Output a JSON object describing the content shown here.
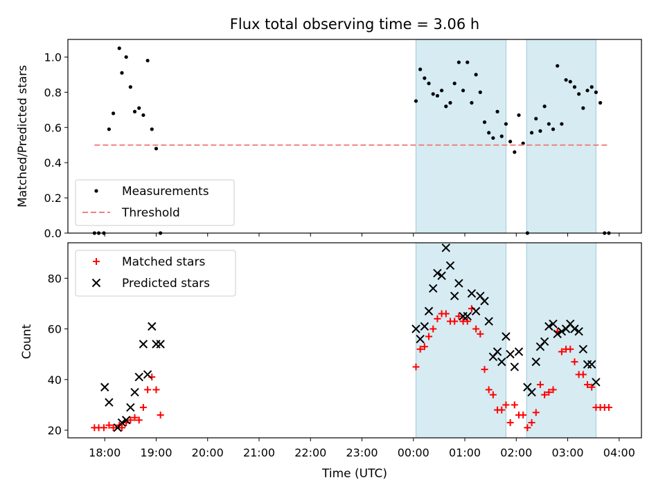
{
  "chart_data": [
    {
      "type": "scatter",
      "title": "Flux total observing time = 3.06 h",
      "xlabel": "",
      "ylabel": "Matched/Predicted stars",
      "ylim": [
        0,
        1.1
      ],
      "yticks": [
        "0.0",
        "0.2",
        "0.4",
        "0.6",
        "0.8",
        "1.0"
      ],
      "yticks_values": [
        0,
        0.2,
        0.4,
        0.6,
        0.8,
        1.0
      ],
      "grid": false,
      "legend_position": "lower-left",
      "shaded_ranges": [
        [
          "00:03",
          "01:48"
        ],
        [
          "02:12",
          "03:33"
        ]
      ],
      "series": [
        {
          "name": "Measurements",
          "marker": "dot",
          "color": "#000000",
          "x": [
            "17:48",
            "17:53",
            "17:59",
            "18:05",
            "18:10",
            "18:17",
            "18:20",
            "18:25",
            "18:30",
            "18:35",
            "18:40",
            "18:45",
            "18:50",
            "18:55",
            "19:00",
            "19:05",
            "00:03",
            "00:08",
            "00:13",
            "00:18",
            "00:23",
            "00:28",
            "00:33",
            "00:38",
            "00:43",
            "00:48",
            "00:53",
            "00:58",
            "01:03",
            "01:08",
            "01:13",
            "01:18",
            "01:23",
            "01:28",
            "01:33",
            "01:38",
            "01:43",
            "01:48",
            "01:53",
            "01:58",
            "02:03",
            "02:08",
            "02:13",
            "02:18",
            "02:23",
            "02:28",
            "02:33",
            "02:38",
            "02:43",
            "02:48",
            "02:53",
            "02:58",
            "03:03",
            "03:08",
            "03:13",
            "03:18",
            "03:23",
            "03:28",
            "03:33",
            "03:38",
            "03:43",
            "03:48"
          ],
          "y": [
            0,
            0,
            0,
            0.59,
            0.68,
            1.05,
            0.91,
            1.0,
            0.83,
            0.69,
            0.71,
            0.67,
            0.98,
            0.59,
            0.48,
            0.0,
            0.75,
            0.93,
            0.88,
            0.85,
            0.79,
            0.78,
            0.81,
            0.72,
            0.74,
            0.85,
            0.97,
            0.81,
            0.97,
            0.74,
            0.9,
            0.8,
            0.63,
            0.57,
            0.54,
            0.69,
            0.55,
            0.62,
            0.52,
            0.46,
            0.67,
            0.51,
            0.0,
            0.57,
            0.65,
            0.58,
            0.72,
            0.62,
            0.59,
            0.95,
            0.62,
            0.87,
            0.86,
            0.83,
            0.79,
            0.71,
            0.81,
            0.83,
            0.8,
            0.74,
            0,
            0
          ]
        },
        {
          "name": "Threshold",
          "marker": "dashed-line",
          "color": "#f08080",
          "x": [
            "17:48",
            "03:48"
          ],
          "y": [
            0.5,
            0.5
          ]
        }
      ]
    },
    {
      "type": "scatter",
      "title": "",
      "xlabel": "Time (UTC)",
      "ylabel": "Count",
      "ylim": [
        17,
        94
      ],
      "yticks": [
        "20",
        "40",
        "60",
        "80"
      ],
      "yticks_values": [
        20,
        40,
        60,
        80
      ],
      "xticks": [
        "18:00",
        "19:00",
        "20:00",
        "21:00",
        "22:00",
        "23:00",
        "00:00",
        "01:00",
        "02:00",
        "03:00",
        "04:00"
      ],
      "grid": false,
      "legend_position": "upper-left",
      "shaded_ranges": [
        [
          "00:03",
          "01:48"
        ],
        [
          "02:12",
          "03:33"
        ]
      ],
      "series": [
        {
          "name": "Matched stars",
          "marker": "plus",
          "color": "#ff0000",
          "x": [
            "17:48",
            "17:53",
            "17:59",
            "18:05",
            "18:10",
            "18:17",
            "18:20",
            "18:25",
            "18:30",
            "18:35",
            "18:40",
            "18:45",
            "18:50",
            "18:55",
            "19:00",
            "19:05",
            "00:03",
            "00:08",
            "00:13",
            "00:18",
            "00:23",
            "00:28",
            "00:33",
            "00:38",
            "00:43",
            "00:48",
            "00:53",
            "00:58",
            "01:03",
            "01:08",
            "01:13",
            "01:18",
            "01:23",
            "01:28",
            "01:33",
            "01:38",
            "01:43",
            "01:48",
            "01:53",
            "01:58",
            "02:03",
            "02:08",
            "02:13",
            "02:18",
            "02:23",
            "02:28",
            "02:33",
            "02:38",
            "02:43",
            "02:48",
            "02:53",
            "02:58",
            "03:03",
            "03:08",
            "03:13",
            "03:18",
            "03:23",
            "03:28",
            "03:33",
            "03:38",
            "03:43",
            "03:48"
          ],
          "y": [
            21,
            21,
            21,
            22,
            21,
            22,
            21,
            23,
            24,
            25,
            24,
            29,
            36,
            41,
            36,
            26,
            45,
            52,
            53,
            57,
            60,
            64,
            66,
            66,
            63,
            63,
            65,
            63,
            63,
            68,
            60,
            58,
            44,
            36,
            34,
            28,
            28,
            30,
            23,
            30,
            26,
            26,
            21,
            23,
            27,
            38,
            34,
            35,
            36,
            59,
            51,
            52,
            52,
            47,
            42,
            42,
            38,
            37,
            29,
            29,
            29,
            29
          ]
        },
        {
          "name": "Predicted stars",
          "marker": "x",
          "color": "#000000",
          "x": [
            "18:00",
            "18:05",
            "18:15",
            "18:20",
            "18:25",
            "18:30",
            "18:35",
            "18:40",
            "18:45",
            "18:50",
            "18:55",
            "19:00",
            "19:05",
            "00:03",
            "00:08",
            "00:13",
            "00:18",
            "00:23",
            "00:28",
            "00:33",
            "00:38",
            "00:43",
            "00:48",
            "00:53",
            "00:58",
            "01:03",
            "01:08",
            "01:13",
            "01:18",
            "01:23",
            "01:28",
            "01:33",
            "01:38",
            "01:43",
            "01:48",
            "01:53",
            "01:58",
            "02:03",
            "02:13",
            "02:18",
            "02:23",
            "02:28",
            "02:33",
            "02:38",
            "02:43",
            "02:48",
            "02:53",
            "02:58",
            "03:03",
            "03:08",
            "03:13",
            "03:18",
            "03:23",
            "03:28",
            "03:33"
          ],
          "y": [
            37,
            31,
            21,
            23,
            24,
            29,
            35,
            41,
            54,
            42,
            61,
            54,
            54,
            60,
            56,
            61,
            67,
            76,
            82,
            81,
            92,
            85,
            73,
            78,
            65,
            65,
            74,
            67,
            73,
            71,
            63,
            49,
            51,
            47,
            57,
            50,
            45,
            51,
            37,
            35,
            47,
            53,
            55,
            61,
            62,
            58,
            59,
            60,
            62,
            60,
            59,
            52,
            46,
            46,
            39
          ]
        }
      ]
    }
  ]
}
